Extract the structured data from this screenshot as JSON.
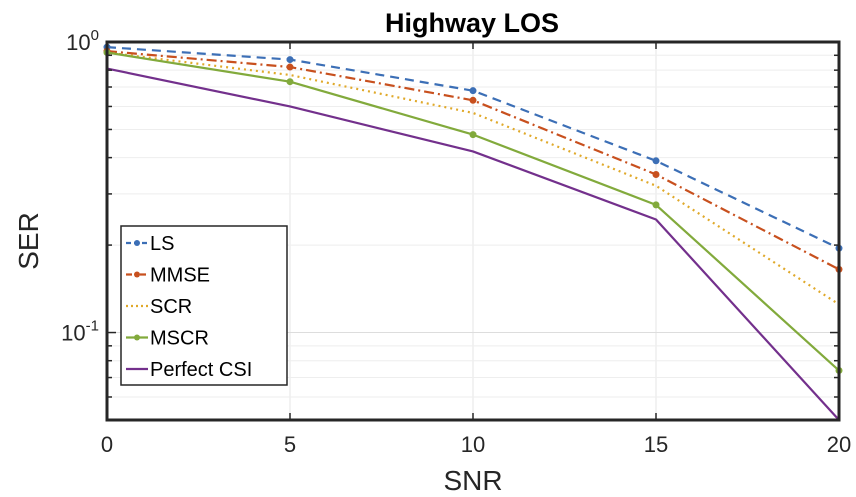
{
  "chart_data": {
    "type": "line",
    "title": "Highway LOS",
    "xlabel": "SNR",
    "ylabel": "SER",
    "xlim": [
      0,
      20
    ],
    "ylim": [
      0.05,
      1.0
    ],
    "yscale": "log",
    "grid": true,
    "legend_position": "bottom-left",
    "x": [
      0,
      5,
      10,
      15,
      20
    ],
    "x_ticks": [
      "0",
      "5",
      "10",
      "15",
      "20"
    ],
    "y_ticks": [
      {
        "value": 1.0,
        "base": "10",
        "exponent": "0"
      },
      {
        "value": 0.1,
        "base": "10",
        "exponent": "-1"
      }
    ],
    "series": [
      {
        "name": "LS",
        "values": [
          0.96,
          0.87,
          0.68,
          0.39,
          0.195
        ],
        "color": "#3C6FB6",
        "dash": "dashed",
        "marker": true
      },
      {
        "name": "MMSE",
        "values": [
          0.93,
          0.82,
          0.63,
          0.35,
          0.165
        ],
        "color": "#C8501E",
        "dash": "dashdot",
        "marker": true
      },
      {
        "name": "SCR",
        "values": [
          0.92,
          0.77,
          0.57,
          0.32,
          0.125
        ],
        "color": "#E0A92A",
        "dash": "dotted",
        "marker": false
      },
      {
        "name": "MSCR",
        "values": [
          0.92,
          0.73,
          0.48,
          0.275,
          0.074
        ],
        "color": "#82AA3C",
        "dash": "solid",
        "marker": true
      },
      {
        "name": "Perfect CSI",
        "values": [
          0.81,
          0.6,
          0.42,
          0.245,
          0.05
        ],
        "color": "#73308C",
        "dash": "solid",
        "marker": false
      }
    ]
  }
}
